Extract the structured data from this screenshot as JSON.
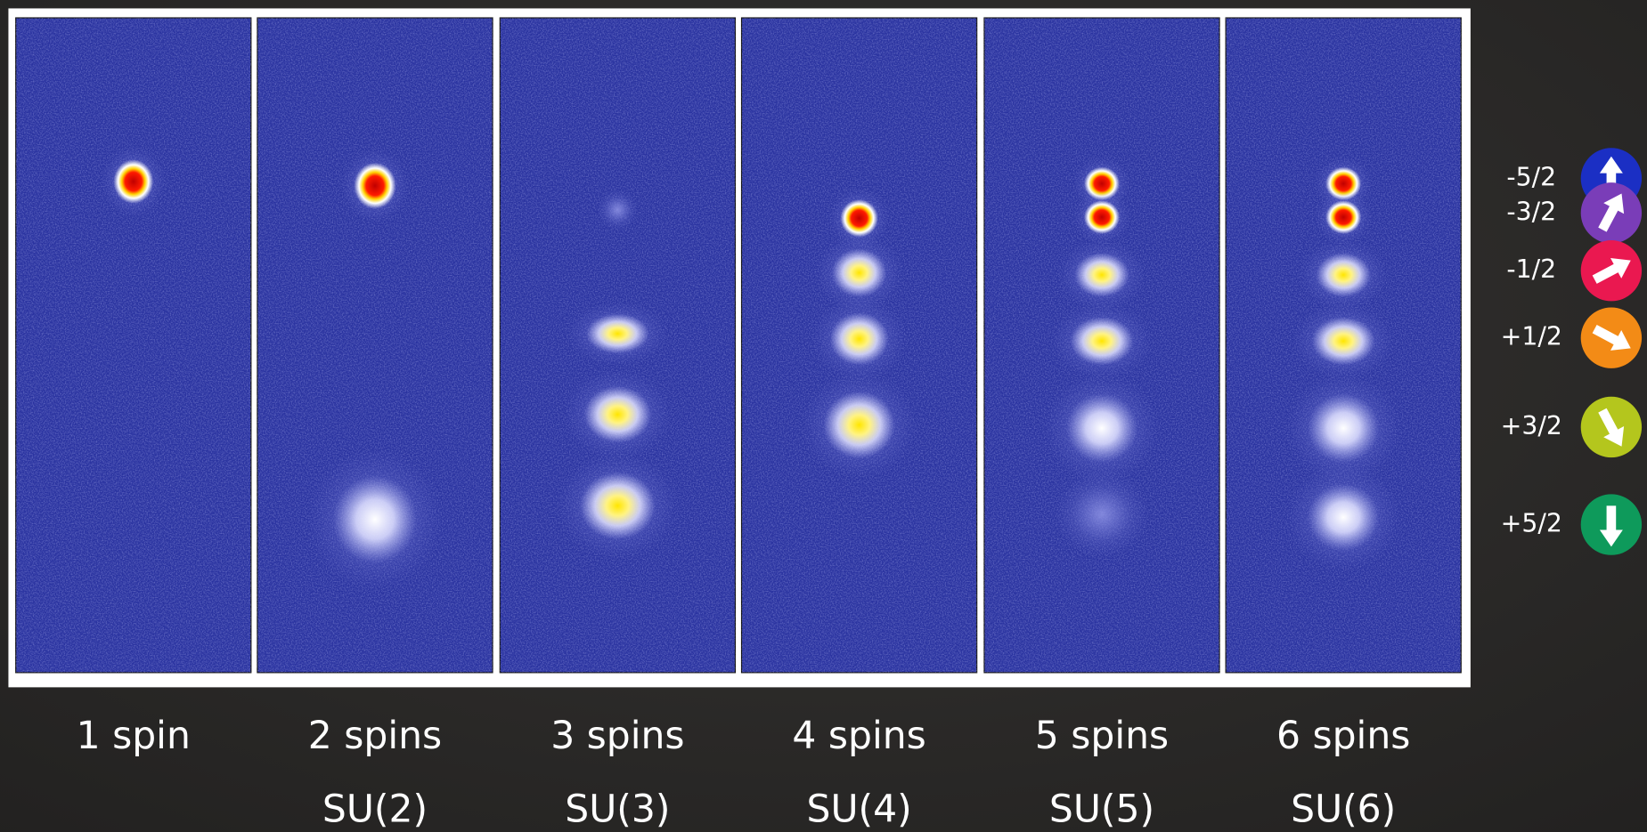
{
  "panels": [
    {
      "label": "1 spin"
    },
    {
      "label": "2 spins",
      "group": "SU(2)"
    },
    {
      "label": "3 spins",
      "group": "SU(3)"
    },
    {
      "label": "4 spins",
      "group": "SU(4)"
    },
    {
      "label": "5 spins",
      "group": "SU(5)"
    },
    {
      "label": "6 spins",
      "group": "SU(6)"
    }
  ],
  "spin_states": [
    "-5/2",
    "-3/2",
    "-1/2",
    "+1/2",
    "+3/2",
    "+5/2"
  ]
}
